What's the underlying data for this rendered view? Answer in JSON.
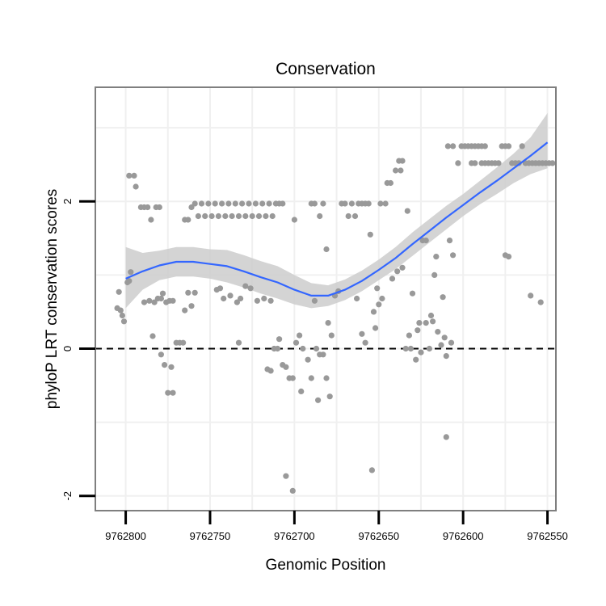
{
  "chart_data": {
    "type": "scatter",
    "title": "Conservation",
    "xlabel": "Genomic Position",
    "ylabel": "phyloP LRT conservation scores",
    "xlim": [
      9762818,
      9762545
    ],
    "ylim": [
      -2.2,
      3.55
    ],
    "x_reversed": true,
    "x_ticks": [
      9762800,
      9762750,
      9762700,
      9762650,
      9762600,
      9762550
    ],
    "x_tick_labels": [
      "9762800",
      "9762750",
      "9762700",
      "9762650",
      "9762600",
      "9762550"
    ],
    "y_ticks": [
      -2,
      0,
      2
    ],
    "y_tick_labels": [
      "-2",
      "0",
      "2"
    ],
    "grid": true,
    "reference_line": {
      "y": 0,
      "style": "dashed"
    },
    "colors": {
      "points": "#999999",
      "smooth": "#3366ff",
      "ribbon": "#cccccc",
      "frame": "#7f7f7f"
    },
    "points": [
      {
        "x": 9762805,
        "y": 0.55
      },
      {
        "x": 9762804,
        "y": 0.77
      },
      {
        "x": 9762803,
        "y": 0.52
      },
      {
        "x": 9762802,
        "y": 0.45
      },
      {
        "x": 9762801,
        "y": 0.37
      },
      {
        "x": 9762799,
        "y": 0.9
      },
      {
        "x": 9762798,
        "y": 0.92
      },
      {
        "x": 9762797,
        "y": 1.04
      },
      {
        "x": 9762798,
        "y": 2.35
      },
      {
        "x": 9762795,
        "y": 2.35
      },
      {
        "x": 9762794,
        "y": 2.2
      },
      {
        "x": 9762791,
        "y": 1.92
      },
      {
        "x": 9762789,
        "y": 1.92
      },
      {
        "x": 9762787,
        "y": 1.92
      },
      {
        "x": 9762785,
        "y": 1.75
      },
      {
        "x": 9762782,
        "y": 1.92
      },
      {
        "x": 9762780,
        "y": 1.92
      },
      {
        "x": 9762789,
        "y": 0.63
      },
      {
        "x": 9762786,
        "y": 0.65
      },
      {
        "x": 9762783,
        "y": 0.63
      },
      {
        "x": 9762781,
        "y": 0.68
      },
      {
        "x": 9762779,
        "y": 0.68
      },
      {
        "x": 9762778,
        "y": 0.75
      },
      {
        "x": 9762776,
        "y": 0.63
      },
      {
        "x": 9762774,
        "y": 0.65
      },
      {
        "x": 9762772,
        "y": 0.65
      },
      {
        "x": 9762784,
        "y": 0.17
      },
      {
        "x": 9762779,
        "y": -0.08
      },
      {
        "x": 9762777,
        "y": -0.22
      },
      {
        "x": 9762775,
        "y": -0.6
      },
      {
        "x": 9762772,
        "y": -0.6
      },
      {
        "x": 9762773,
        "y": -0.25
      },
      {
        "x": 9762770,
        "y": 0.08
      },
      {
        "x": 9762768,
        "y": 0.08
      },
      {
        "x": 9762766,
        "y": 0.08
      },
      {
        "x": 9762765,
        "y": 1.75
      },
      {
        "x": 9762763,
        "y": 1.75
      },
      {
        "x": 9762761,
        "y": 1.92
      },
      {
        "x": 9762759,
        "y": 1.97
      },
      {
        "x": 9762757,
        "y": 1.8
      },
      {
        "x": 9762755,
        "y": 1.97
      },
      {
        "x": 9762753,
        "y": 1.8
      },
      {
        "x": 9762751,
        "y": 1.97
      },
      {
        "x": 9762749,
        "y": 1.8
      },
      {
        "x": 9762747,
        "y": 1.97
      },
      {
        "x": 9762745,
        "y": 1.8
      },
      {
        "x": 9762743,
        "y": 1.97
      },
      {
        "x": 9762741,
        "y": 1.8
      },
      {
        "x": 9762739,
        "y": 1.97
      },
      {
        "x": 9762737,
        "y": 1.8
      },
      {
        "x": 9762735,
        "y": 1.97
      },
      {
        "x": 9762733,
        "y": 1.8
      },
      {
        "x": 9762731,
        "y": 1.97
      },
      {
        "x": 9762729,
        "y": 1.8
      },
      {
        "x": 9762727,
        "y": 1.97
      },
      {
        "x": 9762725,
        "y": 1.8
      },
      {
        "x": 9762723,
        "y": 1.97
      },
      {
        "x": 9762721,
        "y": 1.8
      },
      {
        "x": 9762719,
        "y": 1.97
      },
      {
        "x": 9762717,
        "y": 1.8
      },
      {
        "x": 9762715,
        "y": 1.97
      },
      {
        "x": 9762713,
        "y": 1.8
      },
      {
        "x": 9762711,
        "y": 1.97
      },
      {
        "x": 9762709,
        "y": 1.97
      },
      {
        "x": 9762707,
        "y": 1.97
      },
      {
        "x": 9762765,
        "y": 0.52
      },
      {
        "x": 9762763,
        "y": 0.76
      },
      {
        "x": 9762761,
        "y": 0.58
      },
      {
        "x": 9762759,
        "y": 0.76
      },
      {
        "x": 9762746,
        "y": 0.8
      },
      {
        "x": 9762744,
        "y": 0.82
      },
      {
        "x": 9762742,
        "y": 0.68
      },
      {
        "x": 9762738,
        "y": 0.72
      },
      {
        "x": 9762734,
        "y": 0.63
      },
      {
        "x": 9762732,
        "y": 0.68
      },
      {
        "x": 9762729,
        "y": 0.85
      },
      {
        "x": 9762726,
        "y": 0.82
      },
      {
        "x": 9762722,
        "y": 0.65
      },
      {
        "x": 9762718,
        "y": 0.68
      },
      {
        "x": 9762714,
        "y": 0.65
      },
      {
        "x": 9762733,
        "y": 0.08
      },
      {
        "x": 9762716,
        "y": -0.28
      },
      {
        "x": 9762714,
        "y": -0.3
      },
      {
        "x": 9762712,
        "y": 0.0
      },
      {
        "x": 9762710,
        "y": 0.0
      },
      {
        "x": 9762709,
        "y": 0.13
      },
      {
        "x": 9762707,
        "y": -0.22
      },
      {
        "x": 9762705,
        "y": -0.25
      },
      {
        "x": 9762703,
        "y": -0.4
      },
      {
        "x": 9762701,
        "y": -0.4
      },
      {
        "x": 9762699,
        "y": 0.08
      },
      {
        "x": 9762697,
        "y": 0.18
      },
      {
        "x": 9762695,
        "y": 0.0
      },
      {
        "x": 9762692,
        "y": -0.15
      },
      {
        "x": 9762690,
        "y": -0.4
      },
      {
        "x": 9762687,
        "y": 0.0
      },
      {
        "x": 9762685,
        "y": -0.08
      },
      {
        "x": 9762683,
        "y": -0.08
      },
      {
        "x": 9762681,
        "y": -0.4
      },
      {
        "x": 9762679,
        "y": -0.65
      },
      {
        "x": 9762696,
        "y": -0.58
      },
      {
        "x": 9762686,
        "y": -0.7
      },
      {
        "x": 9762705,
        "y": -1.73
      },
      {
        "x": 9762701,
        "y": -1.93
      },
      {
        "x": 9762700,
        "y": 1.75
      },
      {
        "x": 9762690,
        "y": 1.97
      },
      {
        "x": 9762688,
        "y": 1.97
      },
      {
        "x": 9762685,
        "y": 1.8
      },
      {
        "x": 9762683,
        "y": 1.97
      },
      {
        "x": 9762681,
        "y": 1.35
      },
      {
        "x": 9762680,
        "y": 0.35
      },
      {
        "x": 9762678,
        "y": 0.18
      },
      {
        "x": 9762688,
        "y": 0.65
      },
      {
        "x": 9762676,
        "y": 0.72
      },
      {
        "x": 9762674,
        "y": 0.78
      },
      {
        "x": 9762672,
        "y": 1.97
      },
      {
        "x": 9762670,
        "y": 1.97
      },
      {
        "x": 9762668,
        "y": 1.8
      },
      {
        "x": 9762666,
        "y": 1.97
      },
      {
        "x": 9762664,
        "y": 1.8
      },
      {
        "x": 9762662,
        "y": 1.97
      },
      {
        "x": 9762660,
        "y": 1.97
      },
      {
        "x": 9762658,
        "y": 1.97
      },
      {
        "x": 9762656,
        "y": 1.97
      },
      {
        "x": 9762663,
        "y": 0.68
      },
      {
        "x": 9762660,
        "y": 0.2
      },
      {
        "x": 9762658,
        "y": 0.08
      },
      {
        "x": 9762655,
        "y": 1.55
      },
      {
        "x": 9762654,
        "y": -1.65
      },
      {
        "x": 9762653,
        "y": 0.5
      },
      {
        "x": 9762652,
        "y": 0.28
      },
      {
        "x": 9762651,
        "y": 0.82
      },
      {
        "x": 9762650,
        "y": 0.6
      },
      {
        "x": 9762648,
        "y": 0.68
      },
      {
        "x": 9762649,
        "y": 1.97
      },
      {
        "x": 9762646,
        "y": 1.97
      },
      {
        "x": 9762645,
        "y": 2.25
      },
      {
        "x": 9762643,
        "y": 2.25
      },
      {
        "x": 9762642,
        "y": 0.95
      },
      {
        "x": 9762640,
        "y": 2.42
      },
      {
        "x": 9762638,
        "y": 2.55
      },
      {
        "x": 9762636,
        "y": 2.55
      },
      {
        "x": 9762639,
        "y": 1.05
      },
      {
        "x": 9762636,
        "y": 1.1
      },
      {
        "x": 9762637,
        "y": 2.42
      },
      {
        "x": 9762634,
        "y": 0.0
      },
      {
        "x": 9762632,
        "y": 0.18
      },
      {
        "x": 9762631,
        "y": 0.0
      },
      {
        "x": 9762633,
        "y": 1.87
      },
      {
        "x": 9762630,
        "y": 0.75
      },
      {
        "x": 9762628,
        "y": -0.15
      },
      {
        "x": 9762627,
        "y": 0.25
      },
      {
        "x": 9762626,
        "y": 0.35
      },
      {
        "x": 9762624,
        "y": 1.47
      },
      {
        "x": 9762622,
        "y": 1.47
      },
      {
        "x": 9762625,
        "y": -0.05
      },
      {
        "x": 9762622,
        "y": 0.35
      },
      {
        "x": 9762620,
        "y": 0.0
      },
      {
        "x": 9762619,
        "y": 0.45
      },
      {
        "x": 9762618,
        "y": 0.37
      },
      {
        "x": 9762617,
        "y": 1.0
      },
      {
        "x": 9762616,
        "y": 1.25
      },
      {
        "x": 9762615,
        "y": 0.23
      },
      {
        "x": 9762613,
        "y": 0.05
      },
      {
        "x": 9762612,
        "y": 0.7
      },
      {
        "x": 9762611,
        "y": 0.15
      },
      {
        "x": 9762610,
        "y": -0.1
      },
      {
        "x": 9762610,
        "y": -1.2
      },
      {
        "x": 9762608,
        "y": 1.47
      },
      {
        "x": 9762607,
        "y": 0.08
      },
      {
        "x": 9762606,
        "y": 1.27
      },
      {
        "x": 9762609,
        "y": 2.75
      },
      {
        "x": 9762606,
        "y": 2.75
      },
      {
        "x": 9762603,
        "y": 2.52
      },
      {
        "x": 9762601,
        "y": 2.75
      },
      {
        "x": 9762599,
        "y": 2.75
      },
      {
        "x": 9762597,
        "y": 2.75
      },
      {
        "x": 9762595,
        "y": 2.75
      },
      {
        "x": 9762593,
        "y": 2.75
      },
      {
        "x": 9762591,
        "y": 2.75
      },
      {
        "x": 9762589,
        "y": 2.75
      },
      {
        "x": 9762587,
        "y": 2.75
      },
      {
        "x": 9762585,
        "y": 2.52
      },
      {
        "x": 9762583,
        "y": 2.52
      },
      {
        "x": 9762581,
        "y": 2.52
      },
      {
        "x": 9762579,
        "y": 2.52
      },
      {
        "x": 9762577,
        "y": 2.75
      },
      {
        "x": 9762575,
        "y": 2.75
      },
      {
        "x": 9762573,
        "y": 2.75
      },
      {
        "x": 9762571,
        "y": 2.52
      },
      {
        "x": 9762569,
        "y": 2.52
      },
      {
        "x": 9762567,
        "y": 2.52
      },
      {
        "x": 9762565,
        "y": 2.75
      },
      {
        "x": 9762563,
        "y": 2.52
      },
      {
        "x": 9762561,
        "y": 2.52
      },
      {
        "x": 9762559,
        "y": 2.52
      },
      {
        "x": 9762557,
        "y": 2.52
      },
      {
        "x": 9762555,
        "y": 2.52
      },
      {
        "x": 9762553,
        "y": 2.52
      },
      {
        "x": 9762551,
        "y": 2.52
      },
      {
        "x": 9762549,
        "y": 2.52
      },
      {
        "x": 9762547,
        "y": 2.52
      },
      {
        "x": 9762595,
        "y": 2.52
      },
      {
        "x": 9762593,
        "y": 2.52
      },
      {
        "x": 9762589,
        "y": 2.52
      },
      {
        "x": 9762587,
        "y": 2.52
      },
      {
        "x": 9762575,
        "y": 1.27
      },
      {
        "x": 9762573,
        "y": 1.25
      },
      {
        "x": 9762560,
        "y": 0.72
      },
      {
        "x": 9762554,
        "y": 0.63
      }
    ],
    "smooth_line": {
      "x": [
        9762800,
        9762790,
        9762780,
        9762770,
        9762760,
        9762750,
        9762740,
        9762730,
        9762720,
        9762710,
        9762700,
        9762690,
        9762680,
        9762670,
        9762660,
        9762650,
        9762640,
        9762630,
        9762620,
        9762610,
        9762600,
        9762590,
        9762580,
        9762570,
        9762560,
        9762550
      ],
      "y": [
        0.95,
        1.05,
        1.13,
        1.18,
        1.18,
        1.15,
        1.12,
        1.05,
        0.97,
        0.9,
        0.8,
        0.72,
        0.72,
        0.8,
        0.92,
        1.07,
        1.23,
        1.42,
        1.6,
        1.78,
        1.95,
        2.12,
        2.28,
        2.45,
        2.62,
        2.8
      ]
    },
    "confidence_band": {
      "x": [
        9762800,
        9762790,
        9762780,
        9762770,
        9762760,
        9762750,
        9762740,
        9762730,
        9762720,
        9762710,
        9762700,
        9762690,
        9762680,
        9762670,
        9762660,
        9762650,
        9762640,
        9762630,
        9762620,
        9762610,
        9762600,
        9762590,
        9762580,
        9762570,
        9762560,
        9762550
      ],
      "lower": [
        0.55,
        0.8,
        0.93,
        0.98,
        0.98,
        0.95,
        0.9,
        0.83,
        0.75,
        0.68,
        0.6,
        0.55,
        0.58,
        0.66,
        0.78,
        0.93,
        1.08,
        1.26,
        1.44,
        1.62,
        1.8,
        1.96,
        2.1,
        2.25,
        2.37,
        2.45
      ],
      "upper": [
        1.38,
        1.3,
        1.33,
        1.38,
        1.38,
        1.35,
        1.34,
        1.27,
        1.19,
        1.12,
        1.0,
        0.89,
        0.86,
        0.94,
        1.06,
        1.21,
        1.38,
        1.58,
        1.76,
        1.94,
        2.1,
        2.28,
        2.46,
        2.65,
        2.87,
        3.2
      ]
    }
  }
}
